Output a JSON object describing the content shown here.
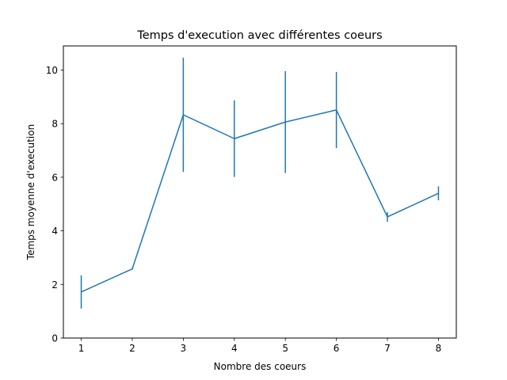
{
  "chart_data": {
    "type": "line",
    "title": "Temps d'execution avec différentes coeurs",
    "xlabel": "Nombre des coeurs",
    "ylabel": "Temps moyenne d'execution",
    "x": [
      1,
      2,
      3,
      4,
      5,
      6,
      7,
      8
    ],
    "series": [
      {
        "values": [
          1.72,
          2.58,
          8.33,
          7.44,
          8.06,
          8.51,
          4.52,
          5.4
        ],
        "error": [
          0.62,
          0.03,
          2.13,
          1.43,
          1.9,
          1.42,
          0.18,
          0.26
        ]
      }
    ],
    "xticks": [
      "1",
      "2",
      "3",
      "4",
      "5",
      "6",
      "7",
      "8"
    ],
    "yticks": [
      "0",
      "2",
      "4",
      "6",
      "8",
      "10"
    ],
    "xlim": [
      0.65,
      8.35
    ],
    "ylim": [
      0,
      10.9
    ],
    "grid": false,
    "colors": {
      "line": "#1f77b4"
    }
  }
}
